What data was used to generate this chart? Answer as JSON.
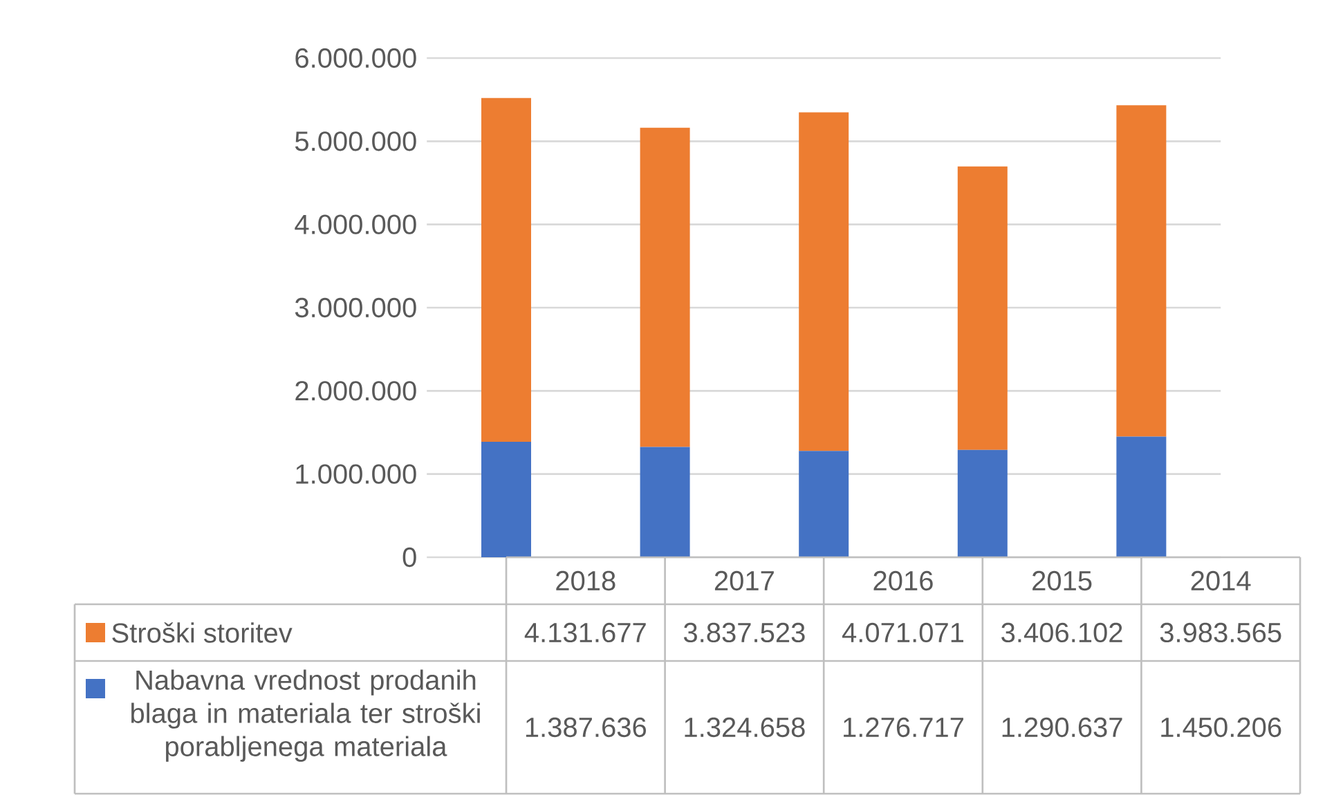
{
  "chart_data": {
    "type": "bar",
    "stacked": true,
    "categories": [
      "2018",
      "2017",
      "2016",
      "2015",
      "2014"
    ],
    "series": [
      {
        "name": "Nabavna vrednost prodanih blaga in materiala ter stroški porabljenega materiala",
        "color": "#4472c4",
        "values": [
          1387636,
          1324658,
          1276717,
          1290637,
          1450206
        ],
        "value_labels": [
          "1.387.636",
          "1.324.658",
          "1.276.717",
          "1.290.637",
          "1.450.206"
        ]
      },
      {
        "name": "Stroški storitev",
        "color": "#ed7d31",
        "values": [
          4131677,
          3837523,
          4071071,
          3406102,
          3983565
        ],
        "value_labels": [
          "4.131.677",
          "3.837.523",
          "4.071.071",
          "3.406.102",
          "3.983.565"
        ]
      }
    ],
    "ylim": [
      0,
      6000000
    ],
    "yticks": [
      {
        "value": 0,
        "label": "0"
      },
      {
        "value": 1000000,
        "label": "1.000.000"
      },
      {
        "value": 2000000,
        "label": "2.000.000"
      },
      {
        "value": 3000000,
        "label": "3.000.000"
      },
      {
        "value": 4000000,
        "label": "4.000.000"
      },
      {
        "value": 5000000,
        "label": "5.000.000"
      },
      {
        "value": 6000000,
        "label": "6.000.000"
      }
    ],
    "grid": "y",
    "legend": "bottom"
  }
}
